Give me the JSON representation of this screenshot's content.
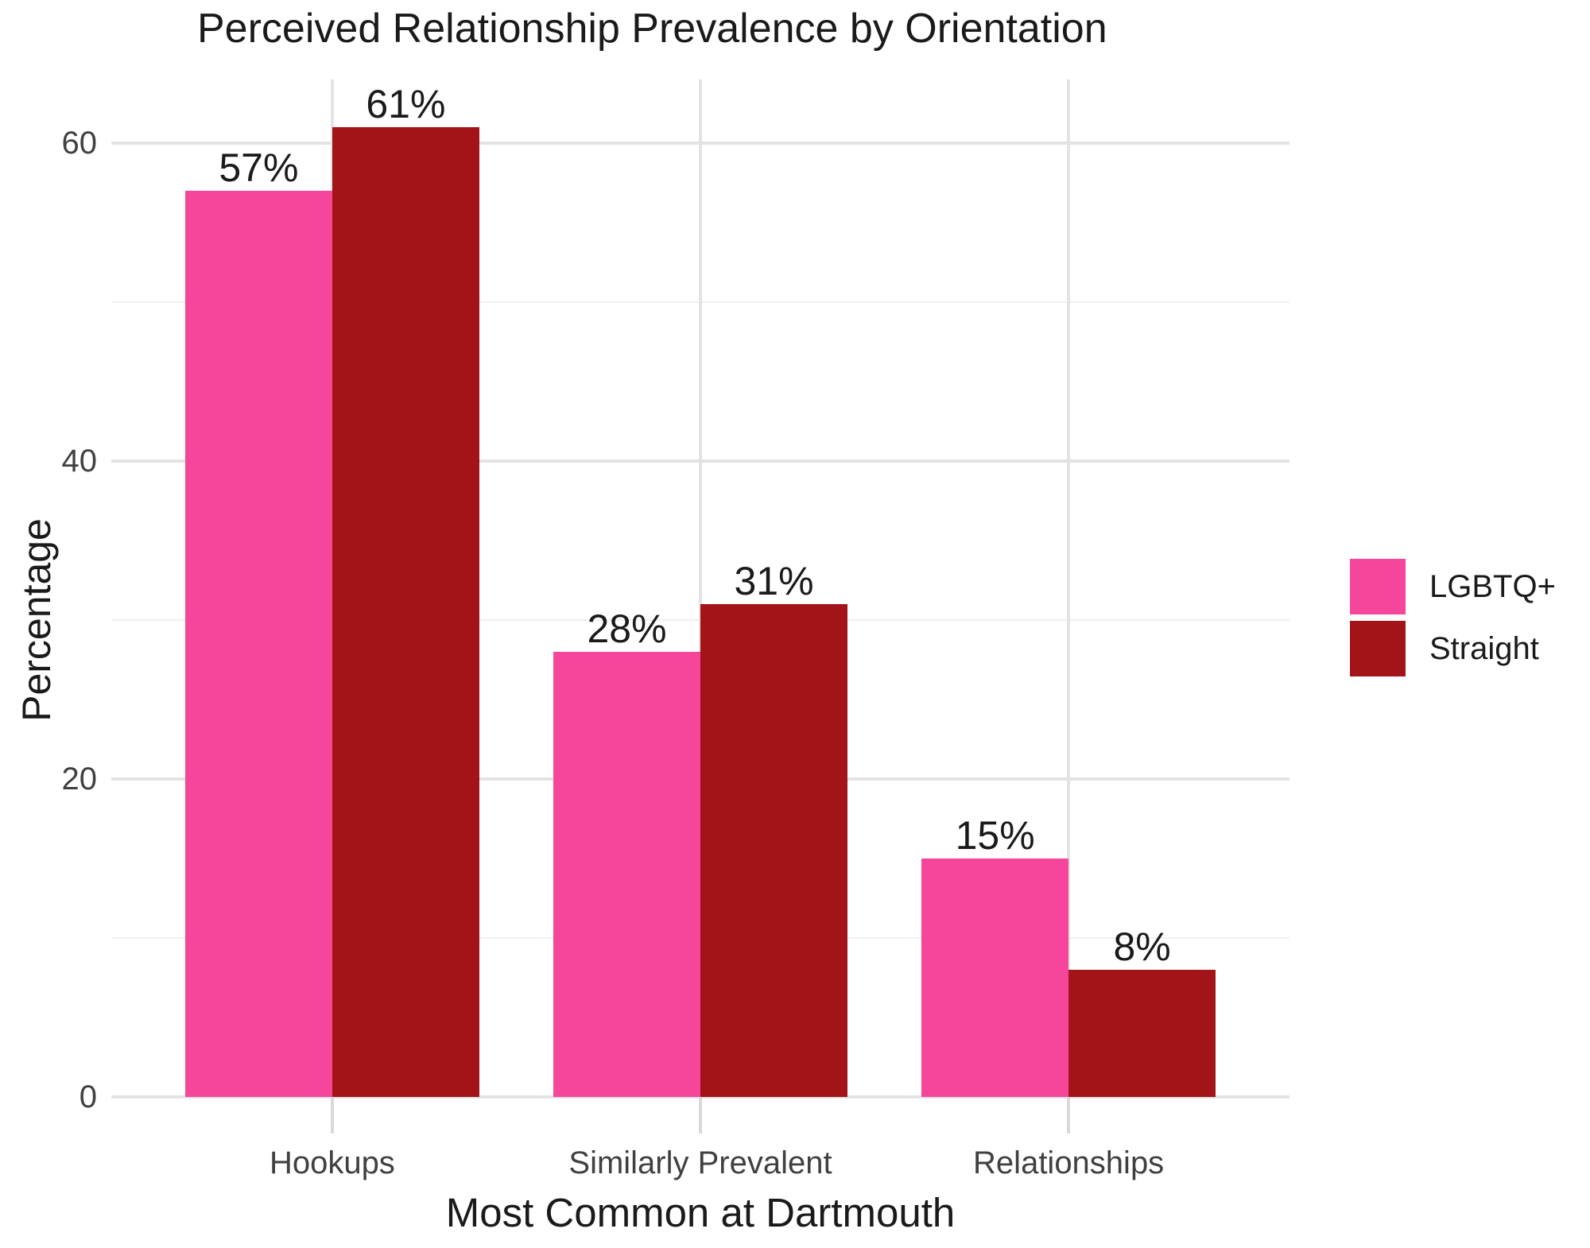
{
  "chart_data": {
    "type": "bar",
    "title": "Perceived Relationship Prevalence by Orientation",
    "xlabel": "Most Common at Dartmouth",
    "ylabel": "Percentage",
    "categories": [
      "Hookups",
      "Similarly Prevalent",
      "Relationships"
    ],
    "series": [
      {
        "name": "LGBTQ+",
        "color": "#F6469C",
        "values": [
          57,
          28,
          15
        ],
        "labels": [
          "57%",
          "28%",
          "15%"
        ]
      },
      {
        "name": "Straight",
        "color": "#A31418",
        "values": [
          61,
          31,
          8
        ],
        "labels": [
          "61%",
          "31%",
          "8%"
        ]
      }
    ],
    "y_axis": {
      "ticks": [
        0,
        20,
        40,
        60
      ],
      "tick_labels": [
        "0",
        "20",
        "40",
        "60"
      ],
      "minor_ticks": [
        10,
        30,
        50
      ],
      "max": 64
    },
    "legend_position": "right",
    "grid": "horizontal major+minor, vertical major at category centers",
    "bar_label_suffix": "%"
  },
  "style": {
    "background": "#FFFFFF",
    "grid_major_color": "#E3E3E3",
    "grid_minor_color": "#F0F0F0",
    "axis_tick_color": "#D9D9D9",
    "axis_text_color": "#404040",
    "text_color": "#1A1A1A"
  }
}
